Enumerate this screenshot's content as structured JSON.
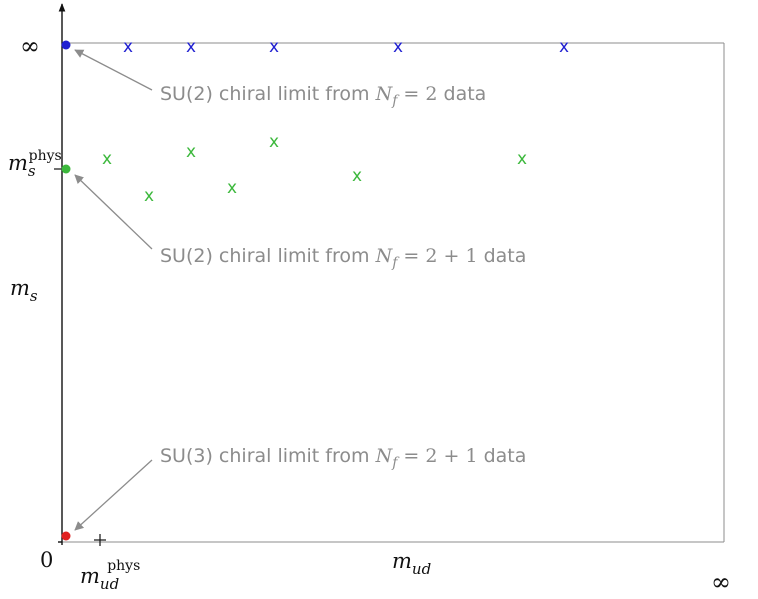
{
  "axes": {
    "y_top_label": "∞",
    "y_ms_phys_label": {
      "base": "m",
      "sub": "s",
      "sup": "phys"
    },
    "y_label": {
      "base": "m",
      "sub": "s"
    },
    "origin_label": "0",
    "x_label": {
      "base": "m",
      "sub": "ud"
    },
    "x_ud_phys_label": {
      "base": "m",
      "sub": "ud",
      "sup": "phys"
    },
    "x_right_label": "∞"
  },
  "annotations": {
    "su2_nf2": {
      "text": "SU(2) chiral limit from ",
      "Nf": "N",
      "Nf_sub": "f",
      "value": " = 2",
      "tail": " data"
    },
    "su2_nf21": {
      "text": "SU(2) chiral limit from ",
      "Nf": "N",
      "Nf_sub": "f",
      "value": " = 2 + 1",
      "tail": " data"
    },
    "su3_nf21": {
      "text": "SU(3) chiral limit from ",
      "Nf": "N",
      "Nf_sub": "f",
      "value": " = 2 + 1",
      "tail": " data"
    }
  },
  "markers": {
    "symbol": "x",
    "colors": {
      "blue": "#1f1fd1",
      "green": "#3cb83c",
      "red": "#e02020",
      "frame": "#8c8c8c",
      "arrow": "#8c8c8c"
    }
  }
}
